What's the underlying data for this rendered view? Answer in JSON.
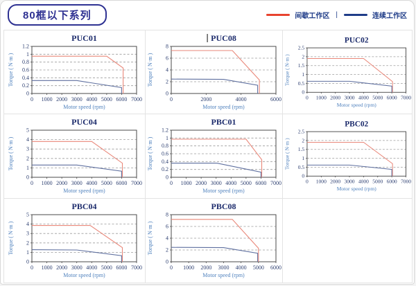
{
  "header": {
    "title": "80框以下系列",
    "legend_separator": "|",
    "legend": [
      {
        "label": "间歇工作区",
        "color": "#e8432e"
      },
      {
        "label": "连续工作区",
        "color": "#1f3c88"
      }
    ]
  },
  "colors": {
    "accent_navy": "#2e3192",
    "legend_red": "#e8432e",
    "legend_blue": "#1f3c88",
    "chart_red": "#e98779",
    "chart_blue": "#5e6f9f",
    "grid_dash": "#9a9a9a",
    "plot_border": "#4a4a4a"
  },
  "chart_data": [
    {
      "type": "line",
      "title": "PUC01",
      "caret": false,
      "xlabel": "Motor speed (rpm)",
      "ylabel": "Torque ( N·m )",
      "xlim": [
        0,
        7000
      ],
      "xticks": [
        0,
        1000,
        2000,
        3000,
        4000,
        5000,
        6000,
        7000
      ],
      "ylim": [
        0,
        1.2
      ],
      "yticks": [
        "0",
        "0.2",
        "0.4",
        "0.6",
        "0.8",
        "1",
        "1.2"
      ],
      "series": [
        {
          "name": "间歇工作区",
          "color": "red",
          "points": [
            [
              0,
              0.95
            ],
            [
              5000,
              0.95
            ],
            [
              6100,
              0.65
            ],
            [
              6100,
              0
            ]
          ]
        },
        {
          "name": "连续工作区",
          "color": "blue",
          "points": [
            [
              0,
              0.33
            ],
            [
              3000,
              0.33
            ],
            [
              6000,
              0.15
            ],
            [
              6000,
              0
            ]
          ]
        }
      ]
    },
    {
      "type": "line",
      "title": "PUC08",
      "caret": true,
      "xlabel": "Motor speed (rpm)",
      "ylabel": "Torque ( N·m )",
      "xlim": [
        0,
        6000
      ],
      "xticks": [
        0,
        2000,
        4000,
        6000
      ],
      "ylim": [
        0,
        8
      ],
      "yticks": [
        "0",
        "2",
        "4",
        "6",
        "8"
      ],
      "series": [
        {
          "name": "间歇工作区",
          "color": "red",
          "points": [
            [
              0,
              7.3
            ],
            [
              3500,
              7.3
            ],
            [
              5050,
              2.3
            ],
            [
              5050,
              0
            ]
          ]
        },
        {
          "name": "连续工作区",
          "color": "blue",
          "points": [
            [
              0,
              2.45
            ],
            [
              3000,
              2.4
            ],
            [
              4950,
              1.4
            ],
            [
              4950,
              0
            ]
          ]
        }
      ]
    },
    {
      "type": "line",
      "title": "PUC02",
      "caret": false,
      "xlabel": "Motor speed (rpm)",
      "ylabel": "Torque ( N·m )",
      "xlim": [
        0,
        7000
      ],
      "xticks": [
        0,
        1000,
        2000,
        3000,
        4000,
        5000,
        6000,
        7000
      ],
      "ylim": [
        0,
        2.5
      ],
      "yticks": [
        "0",
        "0.5",
        "1",
        "1.5",
        "2",
        "2.5"
      ],
      "series": [
        {
          "name": "间歇工作区",
          "color": "red",
          "points": [
            [
              0,
              1.9
            ],
            [
              4000,
              1.9
            ],
            [
              6050,
              0.6
            ],
            [
              6050,
              0
            ]
          ]
        },
        {
          "name": "连续工作区",
          "color": "blue",
          "points": [
            [
              0,
              0.62
            ],
            [
              3000,
              0.62
            ],
            [
              6000,
              0.35
            ],
            [
              6000,
              0
            ]
          ]
        }
      ]
    },
    {
      "type": "line",
      "title": "PUC04",
      "caret": false,
      "xlabel": "Motor speed (rpm)",
      "ylabel": "Torque ( N·m )",
      "xlim": [
        0,
        7000
      ],
      "xticks": [
        0,
        1000,
        2000,
        3000,
        4000,
        5000,
        6000,
        7000
      ],
      "ylim": [
        0,
        5
      ],
      "yticks": [
        "0",
        "1",
        "2",
        "3",
        "4",
        "5"
      ],
      "series": [
        {
          "name": "间歇工作区",
          "color": "red",
          "points": [
            [
              0,
              3.8
            ],
            [
              4000,
              3.8
            ],
            [
              6050,
              1.5
            ],
            [
              6050,
              0
            ]
          ]
        },
        {
          "name": "连续工作区",
          "color": "blue",
          "points": [
            [
              0,
              1.3
            ],
            [
              3000,
              1.3
            ],
            [
              6000,
              0.65
            ],
            [
              6000,
              0
            ]
          ]
        }
      ]
    },
    {
      "type": "line",
      "title": "PBC01",
      "caret": false,
      "xlabel": "Motor speed (rpm)",
      "ylabel": "Torque ( N·m )",
      "xlim": [
        0,
        7000
      ],
      "xticks": [
        0,
        1000,
        2000,
        3000,
        4000,
        5000,
        6000,
        7000
      ],
      "ylim": [
        0,
        1.2
      ],
      "yticks": [
        "0",
        "0.2",
        "0.4",
        "0.6",
        "0.8",
        "1",
        "1.2"
      ],
      "series": [
        {
          "name": "间歇工作区",
          "color": "red",
          "points": [
            [
              0,
              0.97
            ],
            [
              5000,
              0.97
            ],
            [
              6050,
              0.45
            ],
            [
              6050,
              0
            ]
          ]
        },
        {
          "name": "连续工作区",
          "color": "blue",
          "points": [
            [
              0,
              0.36
            ],
            [
              3050,
              0.36
            ],
            [
              6000,
              0.13
            ],
            [
              6000,
              0
            ]
          ]
        }
      ]
    },
    {
      "type": "line",
      "title": "PBC02",
      "caret": false,
      "xlabel": "Motor speed (rpm)",
      "ylabel": "Torque ( N·m )",
      "xlim": [
        0,
        7000
      ],
      "xticks": [
        0,
        1000,
        2000,
        3000,
        4000,
        5000,
        6000,
        7000
      ],
      "ylim": [
        0,
        2.5
      ],
      "yticks": [
        "0",
        "0.5",
        "1",
        "1.5",
        "2",
        "2.5"
      ],
      "series": [
        {
          "name": "间歇工作区",
          "color": "red",
          "points": [
            [
              0,
              1.9
            ],
            [
              4000,
              1.9
            ],
            [
              6050,
              0.7
            ],
            [
              6050,
              0
            ]
          ]
        },
        {
          "name": "连续工作区",
          "color": "blue",
          "points": [
            [
              0,
              0.62
            ],
            [
              3000,
              0.62
            ],
            [
              6000,
              0.38
            ],
            [
              6000,
              0
            ]
          ]
        }
      ]
    },
    {
      "type": "line",
      "title": "PBC04",
      "caret": false,
      "xlabel": "Motor speed (rpm)",
      "ylabel": "Torque ( N·m )",
      "xlim": [
        0,
        7000
      ],
      "xticks": [
        0,
        1000,
        2000,
        3000,
        4000,
        5000,
        6000,
        7000
      ],
      "ylim": [
        0,
        5
      ],
      "yticks": [
        "0",
        "1",
        "2",
        "3",
        "4",
        "5"
      ],
      "series": [
        {
          "name": "间歇工作区",
          "color": "red",
          "points": [
            [
              0,
              3.85
            ],
            [
              3900,
              3.85
            ],
            [
              6050,
              1.5
            ],
            [
              6050,
              0
            ]
          ]
        },
        {
          "name": "连续工作区",
          "color": "blue",
          "points": [
            [
              0,
              1.28
            ],
            [
              3000,
              1.25
            ],
            [
              6000,
              0.65
            ],
            [
              6000,
              0
            ]
          ]
        }
      ]
    },
    {
      "type": "line",
      "title": "PBC08",
      "caret": false,
      "xlabel": "Motor speed (rpm)",
      "ylabel": "Torque ( N·m )",
      "xlim": [
        0,
        6000
      ],
      "xticks": [
        0,
        1000,
        2000,
        3000,
        4000,
        5000,
        6000
      ],
      "ylim": [
        0,
        8
      ],
      "yticks": [
        "0",
        "2",
        "4",
        "6",
        "8"
      ],
      "series": [
        {
          "name": "间歇工作区",
          "color": "red",
          "points": [
            [
              0,
              7.2
            ],
            [
              3500,
              7.2
            ],
            [
              5000,
              2.3
            ],
            [
              5000,
              0
            ]
          ]
        },
        {
          "name": "连续工作区",
          "color": "blue",
          "points": [
            [
              0,
              2.45
            ],
            [
              3000,
              2.4
            ],
            [
              4950,
              1.45
            ],
            [
              4950,
              0
            ]
          ]
        }
      ]
    }
  ]
}
